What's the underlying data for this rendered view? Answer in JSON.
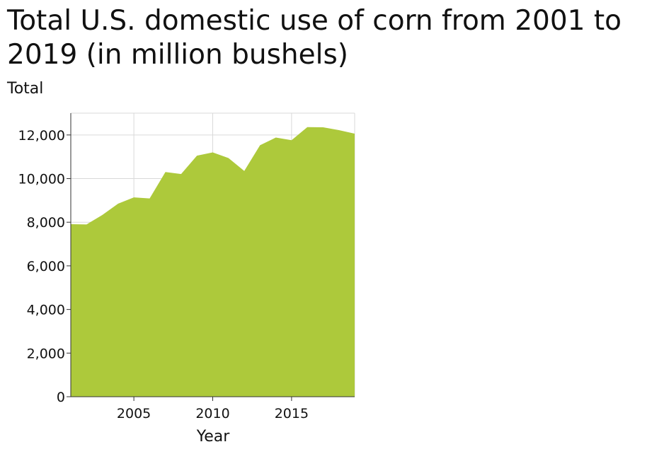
{
  "chart_data": {
    "type": "area",
    "title": "Total U.S. domestic use of corn from 2001 to 2019 (in million bushels)",
    "xlabel": "Year",
    "ylabel": "Total",
    "x": [
      2001,
      2002,
      2003,
      2004,
      2005,
      2006,
      2007,
      2008,
      2009,
      2010,
      2011,
      2012,
      2013,
      2014,
      2015,
      2016,
      2017,
      2018,
      2019
    ],
    "series": [
      {
        "values": [
          7910,
          7900,
          8330,
          8850,
          9140,
          9090,
          10300,
          10210,
          11050,
          11200,
          10940,
          10350,
          11530,
          11880,
          11760,
          12360,
          12350,
          12220,
          12060
        ],
        "color": "#adc93b"
      }
    ],
    "xlim": [
      2001,
      2019
    ],
    "ylim": [
      0,
      13000
    ],
    "xticks": [
      2005,
      2010,
      2015
    ],
    "yticks": [
      0,
      2000,
      4000,
      6000,
      8000,
      10000,
      12000
    ],
    "ytick_labels": [
      "0",
      "2,000",
      "4,000",
      "6,000",
      "8,000",
      "10,000",
      "12,000"
    ],
    "grid": true,
    "legend": "none"
  }
}
